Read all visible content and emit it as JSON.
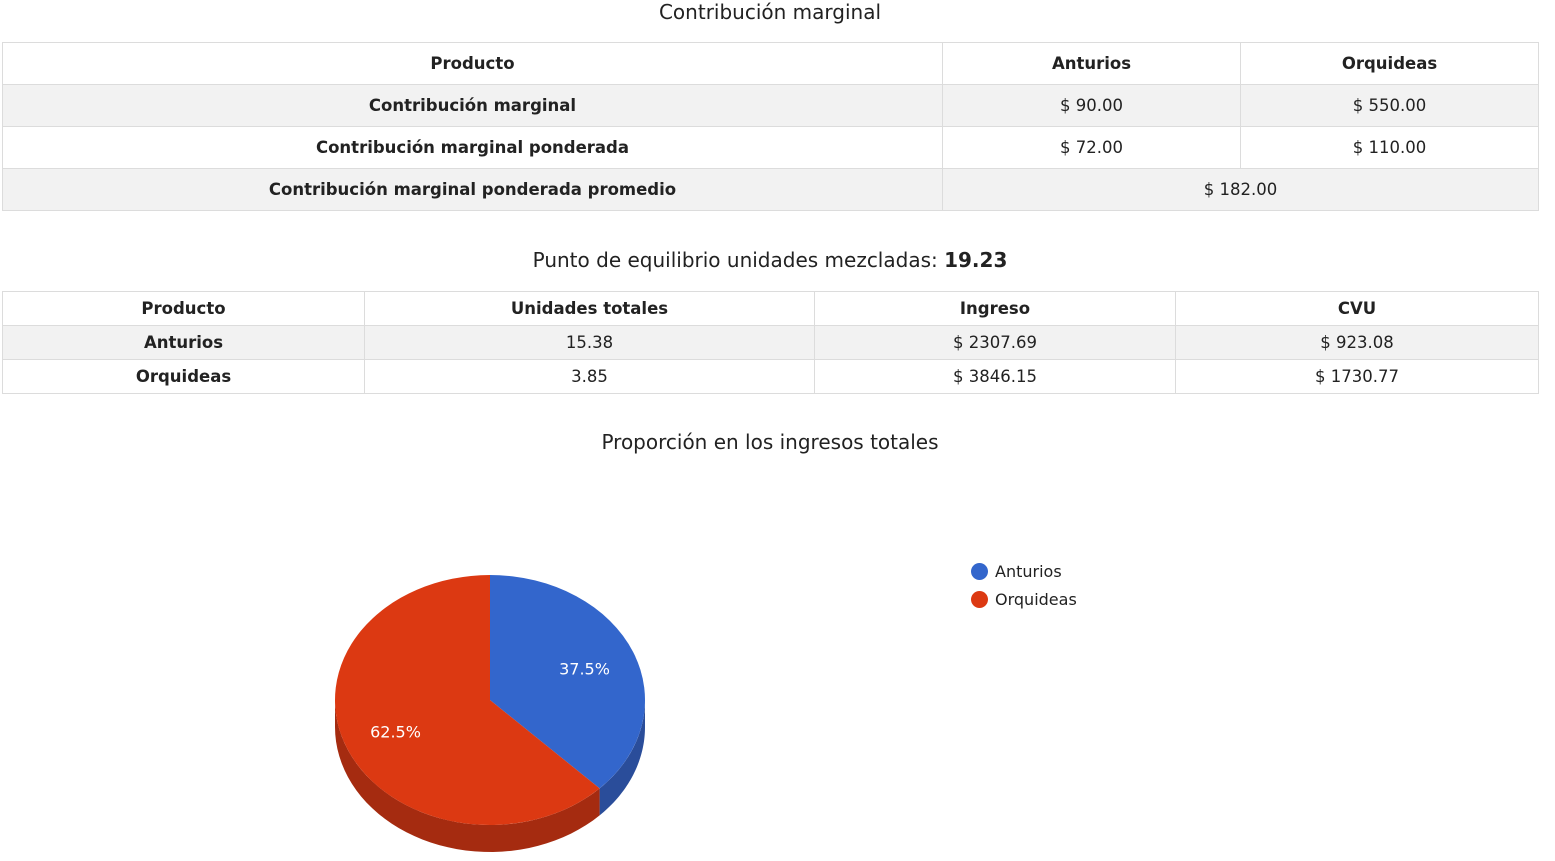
{
  "margin_section": {
    "title": "Contribución marginal",
    "header": [
      "Producto",
      "Anturios",
      "Orquideas"
    ],
    "rows": [
      {
        "label": "Contribución marginal",
        "values": [
          "$ 90.00",
          "$ 550.00"
        ]
      },
      {
        "label": "Contribución marginal ponderada",
        "values": [
          "$ 72.00",
          "$ 110.00"
        ]
      }
    ],
    "average_row": {
      "label": "Contribución marginal ponderada promedio",
      "value": "$ 182.00"
    }
  },
  "breakeven": {
    "title_prefix": "Punto de equilibrio unidades mezcladas: ",
    "value": "19.23"
  },
  "units_table": {
    "header": [
      "Producto",
      "Unidades totales",
      "Ingreso",
      "CVU"
    ],
    "rows": [
      [
        "Anturios",
        "15.38",
        "$ 2307.69",
        "$ 923.08"
      ],
      [
        "Orquideas",
        "3.85",
        "$ 3846.15",
        "$ 1730.77"
      ]
    ]
  },
  "chart_data": {
    "type": "pie",
    "title": "Proporción en los ingresos totales",
    "categories": [
      "Anturios",
      "Orquideas"
    ],
    "values": [
      37.5,
      62.5
    ],
    "labels": [
      "37.5%",
      "62.5%"
    ],
    "colors": [
      "#3366cc",
      "#dc3912"
    ],
    "side_colors": [
      "#2a4d9a",
      "#a52b10"
    ],
    "three_d": true,
    "legend_position": "right"
  }
}
